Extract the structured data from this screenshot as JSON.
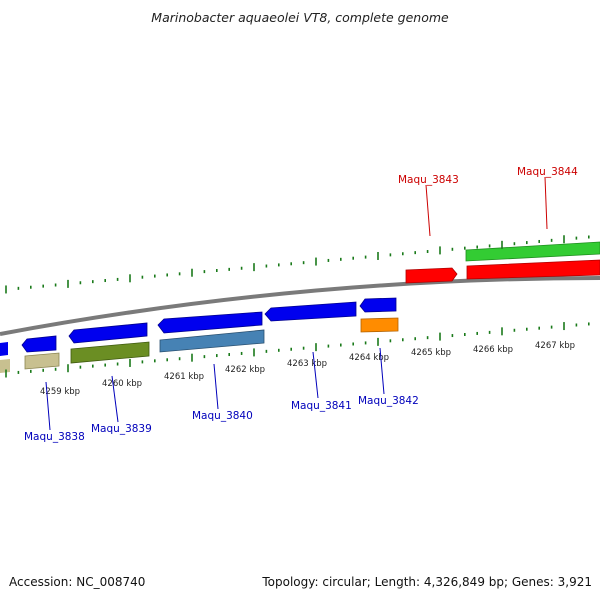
{
  "title": "Marinobacter aquaeolei VT8, complete genome",
  "footer": {
    "accession": "Accession: NC_008740",
    "stats": "Topology: circular; Length: 4,326,849 bp; Genes: 3,921"
  },
  "scale": {
    "labels": [
      "4259 kbp",
      "4260 kbp",
      "4261 kbp",
      "4262 kbp",
      "4263 kbp",
      "4264 kbp",
      "4265 kbp",
      "4266 kbp",
      "4267 kbp"
    ]
  },
  "genes": {
    "forward": [
      {
        "name": "Maqu_3843",
        "color": "#e00000"
      },
      {
        "name": "Maqu_3844",
        "color": "#e00000"
      }
    ],
    "reverse": [
      {
        "name": "Maqu_3838",
        "color": "#0000c0"
      },
      {
        "name": "Maqu_3839",
        "color": "#0000c0"
      },
      {
        "name": "Maqu_3840",
        "color": "#0000c0"
      },
      {
        "name": "Maqu_3841",
        "color": "#0000c0"
      },
      {
        "name": "Maqu_3842",
        "color": "#0000c0"
      }
    ]
  },
  "colors": {
    "forward_cds": "#ff0000",
    "forward_green": "#33cc33",
    "reverse_cds": "#0000ee",
    "reverse_olive": "#6b8e23",
    "reverse_khaki": "#c8c090",
    "reverse_steel": "#4682b4",
    "reverse_orange": "#ff8c00",
    "tick": "#1a7a1a",
    "backbone": "#7a7a7a"
  }
}
